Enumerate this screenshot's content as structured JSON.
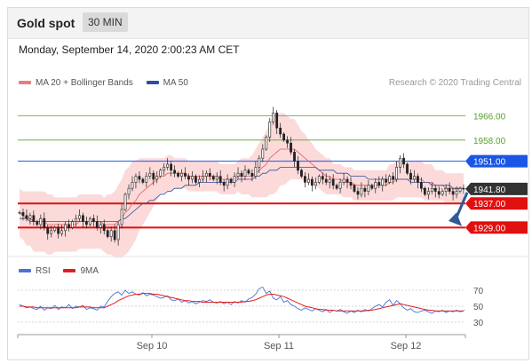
{
  "header": {
    "title": "Gold spot",
    "timeframe": "30 MIN"
  },
  "timestamp": "Monday, September 14, 2020 2:00:23 AM CET",
  "legend_main": [
    {
      "label": "MA 20 + Bollinger Bands",
      "color": "#f07a7a"
    },
    {
      "label": "MA 50",
      "color": "#2e4f9e"
    }
  ],
  "legend_rsi": [
    {
      "label": "RSI",
      "color": "#4a72d8"
    },
    {
      "label": "9MA",
      "color": "#e02020"
    }
  ],
  "credit": "Research © 2020 Trading Central",
  "colors": {
    "green": "#5aa02c",
    "blue": "#1a55e6",
    "red": "#e01010",
    "price": "#333333",
    "band": "#fbd3d3"
  },
  "chart_data": [
    {
      "type": "candlestick",
      "title": "Gold spot",
      "ylim": [
        1920,
        1975
      ],
      "x_ticks": [
        "Sep 10",
        "Sep 11",
        "Sep 12"
      ],
      "levels": [
        {
          "value": 1966.0,
          "label": "1966.00",
          "kind": "resistance"
        },
        {
          "value": 1958.0,
          "label": "1958.00",
          "kind": "resistance"
        },
        {
          "value": 1951.0,
          "label": "1951.00",
          "kind": "pivot"
        },
        {
          "value": 1941.8,
          "label": "1941.80",
          "kind": "last"
        },
        {
          "value": 1937.0,
          "label": "1937.00",
          "kind": "support"
        },
        {
          "value": 1929.0,
          "label": "1929.00",
          "kind": "support"
        }
      ],
      "close": [
        1934,
        1933,
        1932,
        1933,
        1931,
        1930,
        1932,
        1929,
        1927,
        1928,
        1929,
        1927,
        1928,
        1930,
        1929,
        1931,
        1932,
        1933,
        1931,
        1930,
        1932,
        1931,
        1929,
        1930,
        1928,
        1926,
        1928,
        1925,
        1930,
        1935,
        1940,
        1942,
        1944,
        1946,
        1945,
        1944,
        1946,
        1947,
        1945,
        1946,
        1948,
        1949,
        1950,
        1948,
        1947,
        1946,
        1947,
        1946,
        1945,
        1946,
        1944,
        1945,
        1946,
        1947,
        1946,
        1945,
        1946,
        1944,
        1943,
        1945,
        1944,
        1946,
        1947,
        1946,
        1948,
        1947,
        1946,
        1949,
        1952,
        1955,
        1959,
        1964,
        1967,
        1962,
        1960,
        1958,
        1957,
        1954,
        1951,
        1948,
        1946,
        1944,
        1945,
        1943,
        1944,
        1946,
        1945,
        1944,
        1945,
        1943,
        1942,
        1944,
        1945,
        1944,
        1943,
        1941,
        1940,
        1942,
        1941,
        1943,
        1942,
        1944,
        1943,
        1945,
        1944,
        1946,
        1945,
        1949,
        1952,
        1950,
        1947,
        1945,
        1946,
        1944,
        1942,
        1940,
        1941,
        1942,
        1941,
        1940,
        1941,
        1942,
        1941,
        1940,
        1941,
        1942,
        1941.8
      ],
      "ma20": [
        1934,
        1933,
        1932,
        1932,
        1931,
        1931,
        1931,
        1931,
        1930,
        1930,
        1930,
        1930,
        1930,
        1930,
        1930,
        1930,
        1930,
        1931,
        1931,
        1931,
        1931,
        1931,
        1931,
        1931,
        1930,
        1930,
        1930,
        1930,
        1931,
        1932,
        1934,
        1935,
        1937,
        1938,
        1940,
        1941,
        1942,
        1943,
        1944,
        1945,
        1946,
        1946,
        1947,
        1947,
        1947,
        1947,
        1947,
        1947,
        1946,
        1946,
        1946,
        1946,
        1946,
        1946,
        1946,
        1946,
        1946,
        1945,
        1945,
        1945,
        1945,
        1945,
        1946,
        1946,
        1946,
        1946,
        1946,
        1947,
        1948,
        1949,
        1950,
        1952,
        1953,
        1954,
        1955,
        1955,
        1955,
        1955,
        1955,
        1954,
        1953,
        1952,
        1951,
        1950,
        1949,
        1948,
        1947,
        1946,
        1946,
        1945,
        1945,
        1945,
        1944,
        1944,
        1944,
        1943,
        1943,
        1943,
        1943,
        1943,
        1943,
        1943,
        1943,
        1943,
        1943,
        1944,
        1944,
        1945,
        1945,
        1945,
        1945,
        1945,
        1945,
        1945,
        1945,
        1944,
        1944,
        1944,
        1943,
        1943,
        1943,
        1942,
        1942,
        1942,
        1942,
        1942,
        1942
      ],
      "ma50": [
        1932,
        1932,
        1932,
        1931,
        1931,
        1931,
        1931,
        1931,
        1931,
        1931,
        1931,
        1931,
        1931,
        1931,
        1931,
        1931,
        1931,
        1931,
        1931,
        1931,
        1931,
        1931,
        1931,
        1931,
        1931,
        1931,
        1931,
        1931,
        1931,
        1932,
        1932,
        1933,
        1934,
        1935,
        1936,
        1937,
        1937,
        1938,
        1938,
        1939,
        1940,
        1940,
        1941,
        1941,
        1942,
        1942,
        1942,
        1943,
        1943,
        1943,
        1943,
        1944,
        1944,
        1944,
        1944,
        1944,
        1944,
        1944,
        1944,
        1944,
        1944,
        1944,
        1945,
        1945,
        1945,
        1945,
        1945,
        1946,
        1946,
        1947,
        1947,
        1948,
        1948,
        1948,
        1949,
        1949,
        1949,
        1949,
        1949,
        1949,
        1949,
        1949,
        1949,
        1949,
        1949,
        1948,
        1948,
        1948,
        1948,
        1948,
        1947,
        1947,
        1947,
        1947,
        1946,
        1946,
        1946,
        1946,
        1946,
        1945,
        1945,
        1945,
        1945,
        1945,
        1945,
        1945,
        1945,
        1945,
        1945,
        1945,
        1945,
        1944,
        1944,
        1944,
        1944,
        1944,
        1944,
        1943,
        1943,
        1943,
        1943,
        1943,
        1943,
        1942,
        1942,
        1942,
        1942
      ],
      "bb_width": [
        8,
        8,
        9,
        9,
        10,
        10,
        10,
        10,
        10,
        10,
        9,
        9,
        9,
        9,
        9,
        9,
        9,
        9,
        9,
        9,
        9,
        9,
        9,
        9,
        9,
        10,
        10,
        11,
        12,
        13,
        14,
        14,
        14,
        13,
        12,
        11,
        10,
        9,
        8,
        7,
        6,
        6,
        6,
        6,
        5,
        5,
        5,
        5,
        5,
        5,
        5,
        5,
        5,
        5,
        5,
        5,
        5,
        5,
        5,
        5,
        5,
        5,
        5,
        6,
        6,
        6,
        7,
        8,
        9,
        10,
        11,
        12,
        13,
        13,
        12,
        12,
        11,
        10,
        10,
        9,
        8,
        8,
        7,
        7,
        6,
        6,
        6,
        6,
        6,
        5,
        5,
        5,
        5,
        5,
        5,
        5,
        5,
        5,
        5,
        5,
        5,
        5,
        5,
        5,
        5,
        6,
        6,
        6,
        6,
        6,
        6,
        6,
        6,
        6,
        6,
        6,
        6,
        6,
        5,
        5,
        5,
        5,
        5,
        5,
        5,
        5,
        5
      ]
    },
    {
      "type": "line",
      "ylim": [
        20,
        80
      ],
      "y_ticks": [
        30,
        50,
        70
      ],
      "series": [
        {
          "name": "RSI",
          "values": [
            52,
            50,
            48,
            49,
            47,
            46,
            50,
            45,
            48,
            47,
            51,
            46,
            49,
            48,
            52,
            47,
            50,
            49,
            51,
            46,
            48,
            47,
            45,
            50,
            49,
            56,
            62,
            66,
            68,
            64,
            70,
            66,
            68,
            65,
            64,
            67,
            63,
            65,
            64,
            62,
            60,
            61,
            63,
            58,
            57,
            59,
            55,
            57,
            54,
            56,
            53,
            55,
            57,
            56,
            58,
            55,
            54,
            56,
            53,
            55,
            52,
            56,
            54,
            57,
            55,
            59,
            61,
            65,
            72,
            74,
            66,
            69,
            60,
            58,
            62,
            55,
            57,
            52,
            50,
            47,
            45,
            48,
            46,
            44,
            47,
            45,
            43,
            46,
            42,
            45,
            44,
            46,
            43,
            41,
            44,
            42,
            45,
            43,
            46,
            44,
            47,
            50,
            52,
            49,
            55,
            58,
            51,
            57,
            53,
            48,
            45,
            47,
            43,
            42,
            44,
            45,
            43,
            41,
            44,
            43,
            45,
            42,
            44,
            43,
            45,
            43,
            44
          ]
        },
        {
          "name": "9MA",
          "values": [
            50,
            50,
            49,
            49,
            49,
            48,
            48,
            48,
            48,
            48,
            48,
            48,
            48,
            48,
            48,
            48,
            48,
            49,
            49,
            49,
            49,
            48,
            48,
            48,
            48,
            50,
            52,
            54,
            57,
            59,
            61,
            63,
            64,
            65,
            65,
            66,
            66,
            66,
            65,
            65,
            64,
            63,
            62,
            61,
            60,
            59,
            58,
            57,
            57,
            56,
            56,
            56,
            55,
            55,
            55,
            55,
            55,
            55,
            55,
            55,
            55,
            55,
            55,
            55,
            56,
            56,
            57,
            58,
            60,
            62,
            64,
            65,
            65,
            64,
            63,
            62,
            60,
            58,
            56,
            54,
            52,
            50,
            49,
            48,
            47,
            46,
            46,
            45,
            45,
            45,
            44,
            44,
            44,
            44,
            44,
            44,
            44,
            44,
            44,
            45,
            45,
            46,
            47,
            48,
            49,
            50,
            51,
            52,
            53,
            52,
            51,
            50,
            49,
            48,
            47,
            46,
            45,
            45,
            44,
            44,
            44,
            44,
            44,
            44,
            44,
            44,
            44
          ]
        }
      ]
    }
  ]
}
